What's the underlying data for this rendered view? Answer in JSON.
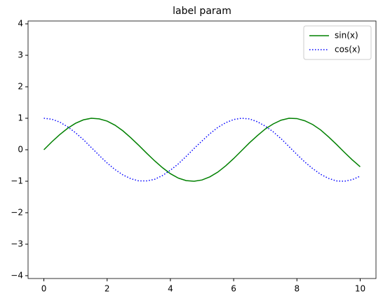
{
  "chart_data": {
    "type": "line",
    "title": "label param",
    "x": [
      0,
      0.25,
      0.5,
      0.75,
      1,
      1.25,
      1.5,
      1.75,
      2,
      2.25,
      2.5,
      2.75,
      3,
      3.25,
      3.5,
      3.75,
      4,
      4.25,
      4.5,
      4.75,
      5,
      5.25,
      5.5,
      5.75,
      6,
      6.25,
      6.5,
      6.75,
      7,
      7.25,
      7.5,
      7.75,
      8,
      8.25,
      8.5,
      8.75,
      9,
      9.25,
      9.5,
      9.75,
      10
    ],
    "series": [
      {
        "name": "sin(x)",
        "color": "#008000",
        "linestyle": "solid",
        "values": [
          0,
          0.25,
          0.48,
          0.68,
          0.84,
          0.95,
          1,
          0.98,
          0.91,
          0.78,
          0.6,
          0.38,
          0.14,
          -0.11,
          -0.35,
          -0.57,
          -0.76,
          -0.9,
          -0.98,
          -1,
          -0.96,
          -0.86,
          -0.71,
          -0.51,
          -0.28,
          -0.03,
          0.22,
          0.45,
          0.66,
          0.82,
          0.94,
          1,
          0.99,
          0.92,
          0.8,
          0.63,
          0.41,
          0.17,
          -0.08,
          -0.32,
          -0.54
        ]
      },
      {
        "name": "cos(x)",
        "color": "#0000ff",
        "linestyle": "dotted",
        "values": [
          1,
          0.97,
          0.88,
          0.73,
          0.54,
          0.32,
          0.07,
          -0.18,
          -0.42,
          -0.63,
          -0.8,
          -0.92,
          -0.99,
          -0.99,
          -0.94,
          -0.82,
          -0.65,
          -0.45,
          -0.21,
          0.04,
          0.28,
          0.51,
          0.71,
          0.86,
          0.96,
          1,
          0.98,
          0.89,
          0.75,
          0.57,
          0.35,
          0.1,
          -0.15,
          -0.39,
          -0.6,
          -0.78,
          -0.91,
          -0.99,
          -1,
          -0.95,
          -0.84
        ]
      }
    ],
    "xlim": [
      -0.5,
      10.5
    ],
    "xticks": [
      0,
      2,
      4,
      6,
      8,
      10
    ],
    "ylim": [
      -4.09,
      4.09
    ],
    "yticks": [
      {
        "value": -4,
        "label": "−4"
      },
      {
        "value": -3,
        "label": "−3"
      },
      {
        "value": -2,
        "label": "−2"
      },
      {
        "value": -1,
        "label": "−1"
      },
      0,
      1,
      2,
      3,
      4
    ],
    "legend": "upper right",
    "grid": false
  }
}
